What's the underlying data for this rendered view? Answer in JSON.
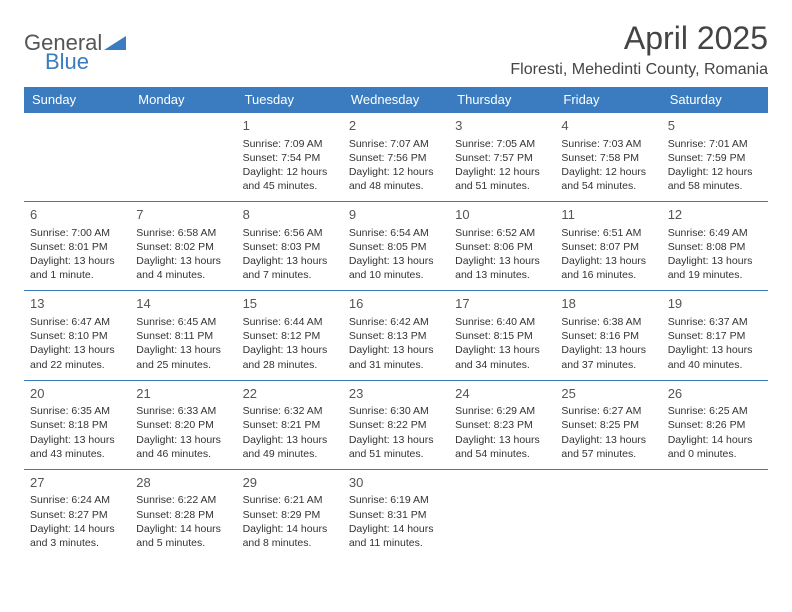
{
  "brand": {
    "part1": "General",
    "part2": "Blue"
  },
  "title": "April 2025",
  "location": "Floresti, Mehedinti County, Romania",
  "colors": {
    "header_bg": "#3b7bbf",
    "header_text": "#ffffff",
    "border": "#3b7bbf",
    "text": "#333333",
    "brand_gray": "#555555",
    "brand_blue": "#3b7bbf",
    "background": "#ffffff"
  },
  "weekdays": [
    "Sunday",
    "Monday",
    "Tuesday",
    "Wednesday",
    "Thursday",
    "Friday",
    "Saturday"
  ],
  "layout": {
    "cols": 7,
    "rows": 5,
    "first_weekday_index": 2
  },
  "days": [
    {
      "n": "1",
      "sunrise": "Sunrise: 7:09 AM",
      "sunset": "Sunset: 7:54 PM",
      "daylight": "Daylight: 12 hours and 45 minutes."
    },
    {
      "n": "2",
      "sunrise": "Sunrise: 7:07 AM",
      "sunset": "Sunset: 7:56 PM",
      "daylight": "Daylight: 12 hours and 48 minutes."
    },
    {
      "n": "3",
      "sunrise": "Sunrise: 7:05 AM",
      "sunset": "Sunset: 7:57 PM",
      "daylight": "Daylight: 12 hours and 51 minutes."
    },
    {
      "n": "4",
      "sunrise": "Sunrise: 7:03 AM",
      "sunset": "Sunset: 7:58 PM",
      "daylight": "Daylight: 12 hours and 54 minutes."
    },
    {
      "n": "5",
      "sunrise": "Sunrise: 7:01 AM",
      "sunset": "Sunset: 7:59 PM",
      "daylight": "Daylight: 12 hours and 58 minutes."
    },
    {
      "n": "6",
      "sunrise": "Sunrise: 7:00 AM",
      "sunset": "Sunset: 8:01 PM",
      "daylight": "Daylight: 13 hours and 1 minute."
    },
    {
      "n": "7",
      "sunrise": "Sunrise: 6:58 AM",
      "sunset": "Sunset: 8:02 PM",
      "daylight": "Daylight: 13 hours and 4 minutes."
    },
    {
      "n": "8",
      "sunrise": "Sunrise: 6:56 AM",
      "sunset": "Sunset: 8:03 PM",
      "daylight": "Daylight: 13 hours and 7 minutes."
    },
    {
      "n": "9",
      "sunrise": "Sunrise: 6:54 AM",
      "sunset": "Sunset: 8:05 PM",
      "daylight": "Daylight: 13 hours and 10 minutes."
    },
    {
      "n": "10",
      "sunrise": "Sunrise: 6:52 AM",
      "sunset": "Sunset: 8:06 PM",
      "daylight": "Daylight: 13 hours and 13 minutes."
    },
    {
      "n": "11",
      "sunrise": "Sunrise: 6:51 AM",
      "sunset": "Sunset: 8:07 PM",
      "daylight": "Daylight: 13 hours and 16 minutes."
    },
    {
      "n": "12",
      "sunrise": "Sunrise: 6:49 AM",
      "sunset": "Sunset: 8:08 PM",
      "daylight": "Daylight: 13 hours and 19 minutes."
    },
    {
      "n": "13",
      "sunrise": "Sunrise: 6:47 AM",
      "sunset": "Sunset: 8:10 PM",
      "daylight": "Daylight: 13 hours and 22 minutes."
    },
    {
      "n": "14",
      "sunrise": "Sunrise: 6:45 AM",
      "sunset": "Sunset: 8:11 PM",
      "daylight": "Daylight: 13 hours and 25 minutes."
    },
    {
      "n": "15",
      "sunrise": "Sunrise: 6:44 AM",
      "sunset": "Sunset: 8:12 PM",
      "daylight": "Daylight: 13 hours and 28 minutes."
    },
    {
      "n": "16",
      "sunrise": "Sunrise: 6:42 AM",
      "sunset": "Sunset: 8:13 PM",
      "daylight": "Daylight: 13 hours and 31 minutes."
    },
    {
      "n": "17",
      "sunrise": "Sunrise: 6:40 AM",
      "sunset": "Sunset: 8:15 PM",
      "daylight": "Daylight: 13 hours and 34 minutes."
    },
    {
      "n": "18",
      "sunrise": "Sunrise: 6:38 AM",
      "sunset": "Sunset: 8:16 PM",
      "daylight": "Daylight: 13 hours and 37 minutes."
    },
    {
      "n": "19",
      "sunrise": "Sunrise: 6:37 AM",
      "sunset": "Sunset: 8:17 PM",
      "daylight": "Daylight: 13 hours and 40 minutes."
    },
    {
      "n": "20",
      "sunrise": "Sunrise: 6:35 AM",
      "sunset": "Sunset: 8:18 PM",
      "daylight": "Daylight: 13 hours and 43 minutes."
    },
    {
      "n": "21",
      "sunrise": "Sunrise: 6:33 AM",
      "sunset": "Sunset: 8:20 PM",
      "daylight": "Daylight: 13 hours and 46 minutes."
    },
    {
      "n": "22",
      "sunrise": "Sunrise: 6:32 AM",
      "sunset": "Sunset: 8:21 PM",
      "daylight": "Daylight: 13 hours and 49 minutes."
    },
    {
      "n": "23",
      "sunrise": "Sunrise: 6:30 AM",
      "sunset": "Sunset: 8:22 PM",
      "daylight": "Daylight: 13 hours and 51 minutes."
    },
    {
      "n": "24",
      "sunrise": "Sunrise: 6:29 AM",
      "sunset": "Sunset: 8:23 PM",
      "daylight": "Daylight: 13 hours and 54 minutes."
    },
    {
      "n": "25",
      "sunrise": "Sunrise: 6:27 AM",
      "sunset": "Sunset: 8:25 PM",
      "daylight": "Daylight: 13 hours and 57 minutes."
    },
    {
      "n": "26",
      "sunrise": "Sunrise: 6:25 AM",
      "sunset": "Sunset: 8:26 PM",
      "daylight": "Daylight: 14 hours and 0 minutes."
    },
    {
      "n": "27",
      "sunrise": "Sunrise: 6:24 AM",
      "sunset": "Sunset: 8:27 PM",
      "daylight": "Daylight: 14 hours and 3 minutes."
    },
    {
      "n": "28",
      "sunrise": "Sunrise: 6:22 AM",
      "sunset": "Sunset: 8:28 PM",
      "daylight": "Daylight: 14 hours and 5 minutes."
    },
    {
      "n": "29",
      "sunrise": "Sunrise: 6:21 AM",
      "sunset": "Sunset: 8:29 PM",
      "daylight": "Daylight: 14 hours and 8 minutes."
    },
    {
      "n": "30",
      "sunrise": "Sunrise: 6:19 AM",
      "sunset": "Sunset: 8:31 PM",
      "daylight": "Daylight: 14 hours and 11 minutes."
    }
  ]
}
